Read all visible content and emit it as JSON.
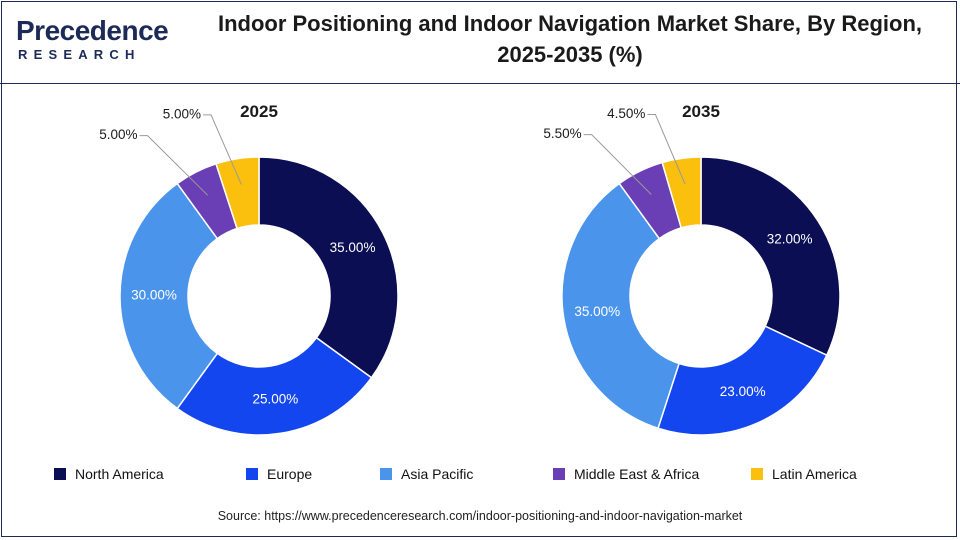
{
  "logo": {
    "main": "Precedence",
    "sub": "RESEARCH"
  },
  "title": "Indoor Positioning and Indoor Navigation Market Share, By Region, 2025-2035 (%)",
  "chart_data": {
    "type": "pie",
    "style": "donut",
    "categories": [
      "North America",
      "Europe",
      "Asia Pacific",
      "Middle East & Africa",
      "Latin America"
    ],
    "colors": [
      "#0b0e52",
      "#1446f0",
      "#4a94ec",
      "#6a3fb5",
      "#fbbf0e"
    ],
    "legend_position": "bottom",
    "series": [
      {
        "name": "2025",
        "values": [
          35.0,
          25.0,
          30.0,
          5.0,
          5.0
        ],
        "labels": [
          "35.00%",
          "25.00%",
          "30.00%",
          "5.00%",
          "5.00%"
        ]
      },
      {
        "name": "2035",
        "values": [
          32.0,
          23.0,
          35.0,
          5.5,
          4.5
        ],
        "labels": [
          "32.00%",
          "23.00%",
          "35.00%",
          "5.50%",
          "4.50%"
        ]
      }
    ]
  },
  "source": "Source: https://www.precedenceresearch.com/indoor-positioning-and-indoor-navigation-market"
}
